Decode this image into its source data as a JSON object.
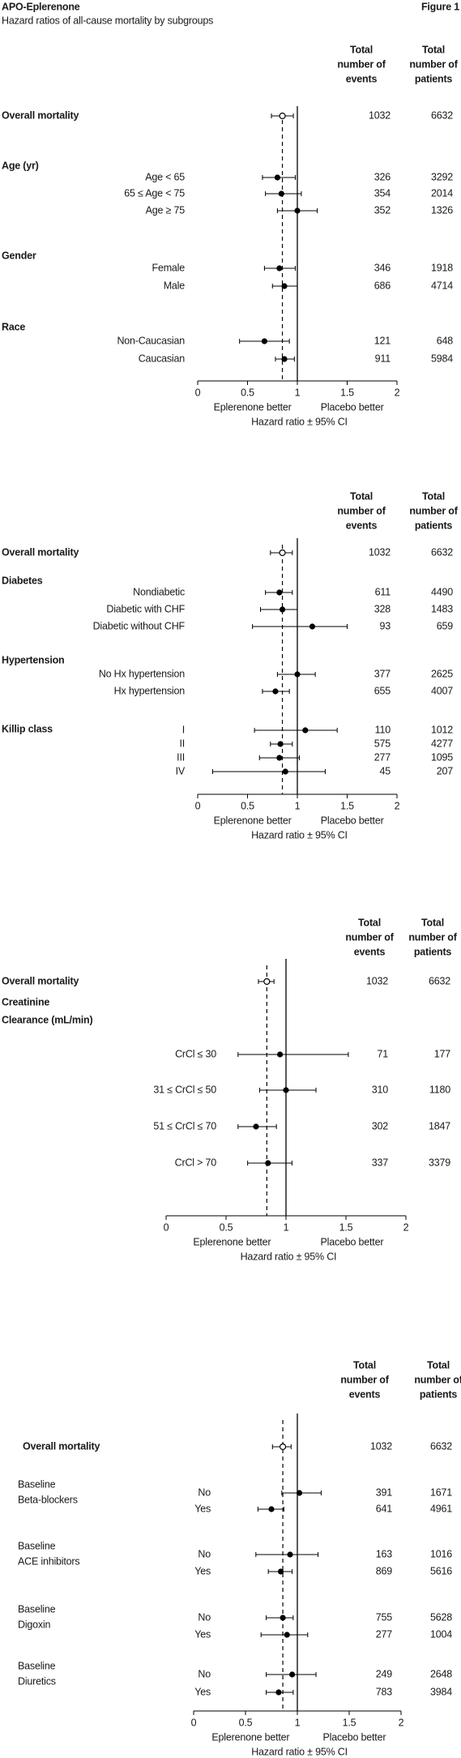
{
  "chart_data": [
    {
      "type": "forest",
      "title": "APO-Eplerenone",
      "subtitle": "Hazard ratios of all-cause mortality by subgroups",
      "figure_label": "Figure 1",
      "events_header": [
        "Total",
        "number of",
        "events"
      ],
      "patients_header": [
        "Total",
        "number of",
        "patients"
      ],
      "xlim": [
        0,
        2
      ],
      "xticks": [
        0,
        0.5,
        1,
        1.5,
        2
      ],
      "reference_line": 1,
      "dashed_line": 0.85,
      "left_label": "Eplerenone better",
      "right_label": "Placebo better",
      "xlabel": "Hazard ratio ± 95% CI",
      "rows": [
        {
          "label": "Overall mortality",
          "heading": true,
          "open": true,
          "hr": 0.85,
          "ci": [
            0.74,
            0.96
          ],
          "events": 1032,
          "patients": 6632
        },
        {
          "label": "Age (yr)",
          "heading": true
        },
        {
          "label": "Age < 65",
          "hr": 0.8,
          "ci": [
            0.65,
            0.98
          ],
          "events": 326,
          "patients": 3292
        },
        {
          "label": "65 ≤ Age < 75",
          "hr": 0.84,
          "ci": [
            0.68,
            1.04
          ],
          "events": 354,
          "patients": 2014
        },
        {
          "label": "Age ≥ 75",
          "hr": 1.0,
          "ci": [
            0.8,
            1.2
          ],
          "events": 352,
          "patients": 1326
        },
        {
          "label": "Gender",
          "heading": true
        },
        {
          "label": "Female",
          "hr": 0.82,
          "ci": [
            0.67,
            0.98
          ],
          "events": 346,
          "patients": 1918
        },
        {
          "label": "Male",
          "hr": 0.87,
          "ci": [
            0.75,
            1.0
          ],
          "events": 686,
          "patients": 4714
        },
        {
          "label": "Race",
          "heading": true
        },
        {
          "label": "Non-Caucasian",
          "hr": 0.67,
          "ci": [
            0.42,
            0.92
          ],
          "events": 121,
          "patients": 648
        },
        {
          "label": "Caucasian",
          "hr": 0.87,
          "ci": [
            0.78,
            0.97
          ],
          "events": 911,
          "patients": 5984
        }
      ]
    },
    {
      "type": "forest",
      "events_header": [
        "Total",
        "number of",
        "events"
      ],
      "patients_header": [
        "Total",
        "number of",
        "patients"
      ],
      "xlim": [
        0,
        2
      ],
      "xticks": [
        0,
        0.5,
        1,
        1.5,
        2
      ],
      "reference_line": 1,
      "dashed_line": 0.85,
      "left_label": "Eplerenone better",
      "right_label": "Placebo better",
      "xlabel": "Hazard ratio ± 95% CI",
      "rows": [
        {
          "label": "Overall mortality",
          "heading": true,
          "open": true,
          "hr": 0.85,
          "ci": [
            0.73,
            0.95
          ],
          "events": 1032,
          "patients": 6632
        },
        {
          "label": "Diabetes",
          "heading": true
        },
        {
          "label": "Nondiabetic",
          "hr": 0.82,
          "ci": [
            0.68,
            0.95
          ],
          "events": 611,
          "patients": 4490
        },
        {
          "label": "Diabetic with CHF",
          "hr": 0.85,
          "ci": [
            0.63,
            1.0
          ],
          "events": 328,
          "patients": 1483
        },
        {
          "label": "Diabetic without CHF",
          "hr": 1.15,
          "ci": [
            0.55,
            1.5
          ],
          "events": 93,
          "patients": 659
        },
        {
          "label": "Hypertension",
          "heading": true
        },
        {
          "label": "No Hx hypertension",
          "hr": 1.0,
          "ci": [
            0.8,
            1.18
          ],
          "events": 377,
          "patients": 2625
        },
        {
          "label": "Hx hypertension",
          "hr": 0.78,
          "ci": [
            0.65,
            0.92
          ],
          "events": 655,
          "patients": 4007
        },
        {
          "label": "Killip class",
          "heading": true
        },
        {
          "label": "I",
          "hr": 1.08,
          "ci": [
            0.57,
            1.4
          ],
          "events": 110,
          "patients": 1012
        },
        {
          "label": "II",
          "hr": 0.83,
          "ci": [
            0.73,
            0.95
          ],
          "events": 575,
          "patients": 4277
        },
        {
          "label": "III",
          "hr": 0.82,
          "ci": [
            0.62,
            1.02
          ],
          "events": 277,
          "patients": 1095
        },
        {
          "label": "IV",
          "hr": 0.88,
          "ci": [
            0.15,
            1.28
          ],
          "events": 45,
          "patients": 207
        }
      ]
    },
    {
      "type": "forest",
      "events_header": [
        "Total",
        "number of",
        "events"
      ],
      "patients_header": [
        "Total",
        "number of",
        "patients"
      ],
      "xlim": [
        0,
        2
      ],
      "xticks": [
        0,
        0.5,
        1,
        1.5,
        2
      ],
      "reference_line": 1,
      "dashed_line": 0.84,
      "left_label": "Eplerenone better",
      "right_label": "Placebo better",
      "xlabel": "Hazard ratio ± 95% CI",
      "rows": [
        {
          "label": "Overall mortality",
          "heading": true,
          "open": true,
          "hr": 0.84,
          "ci": [
            0.77,
            0.9
          ],
          "events": 1032,
          "patients": 6632
        },
        {
          "label": "Creatinine",
          "heading": true
        },
        {
          "label": "Clearance (mL/min)",
          "heading": true
        },
        {
          "label": "CrCl ≤ 30",
          "hr": 0.95,
          "ci": [
            0.6,
            1.52
          ],
          "events": 71,
          "patients": 177
        },
        {
          "label": "31 ≤ CrCl ≤ 50",
          "hr": 1.0,
          "ci": [
            0.78,
            1.25
          ],
          "events": 310,
          "patients": 1180
        },
        {
          "label": "51 ≤ CrCl ≤ 70",
          "hr": 0.75,
          "ci": [
            0.6,
            0.92
          ],
          "events": 302,
          "patients": 1847
        },
        {
          "label": "CrCl > 70",
          "hr": 0.85,
          "ci": [
            0.68,
            1.05
          ],
          "events": 337,
          "patients": 3379
        }
      ]
    },
    {
      "type": "forest",
      "events_header": [
        "Total",
        "number of",
        "events"
      ],
      "patients_header": [
        "Total",
        "number of",
        "patients"
      ],
      "xlim": [
        0,
        2
      ],
      "xticks": [
        0,
        0.5,
        1,
        1.5,
        2
      ],
      "reference_line": 1,
      "dashed_line": 0.86,
      "left_label": "Eplerenone better",
      "right_label": "Placebo better",
      "xlabel": "Hazard ratio ± 95% CI",
      "rows": [
        {
          "label": "Overall mortality",
          "heading": true,
          "open": true,
          "hr": 0.86,
          "ci": [
            0.76,
            0.94
          ],
          "events": 1032,
          "patients": 6632
        },
        {
          "group": [
            "Baseline",
            "Beta-blockers"
          ],
          "label": "No",
          "hr": 1.02,
          "ci": [
            0.85,
            1.23
          ],
          "events": 391,
          "patients": 1671
        },
        {
          "label": "Yes",
          "hr": 0.75,
          "ci": [
            0.62,
            0.87
          ],
          "events": 641,
          "patients": 4961
        },
        {
          "group": [
            "Baseline",
            "ACE inhibitors"
          ],
          "label": "No",
          "hr": 0.93,
          "ci": [
            0.6,
            1.2
          ],
          "events": 163,
          "patients": 1016
        },
        {
          "label": "Yes",
          "hr": 0.84,
          "ci": [
            0.72,
            0.95
          ],
          "events": 869,
          "patients": 5616
        },
        {
          "group": [
            "Baseline",
            "Digoxin"
          ],
          "label": "No",
          "hr": 0.86,
          "ci": [
            0.7,
            0.96
          ],
          "events": 755,
          "patients": 5628
        },
        {
          "label": "Yes",
          "hr": 0.9,
          "ci": [
            0.65,
            1.1
          ],
          "events": 277,
          "patients": 1004
        },
        {
          "group": [
            "Baseline",
            "Diuretics"
          ],
          "label": "No",
          "hr": 0.95,
          "ci": [
            0.7,
            1.18
          ],
          "events": 249,
          "patients": 2648
        },
        {
          "label": "Yes",
          "hr": 0.82,
          "ci": [
            0.7,
            0.96
          ],
          "events": 783,
          "patients": 3984
        }
      ]
    }
  ]
}
